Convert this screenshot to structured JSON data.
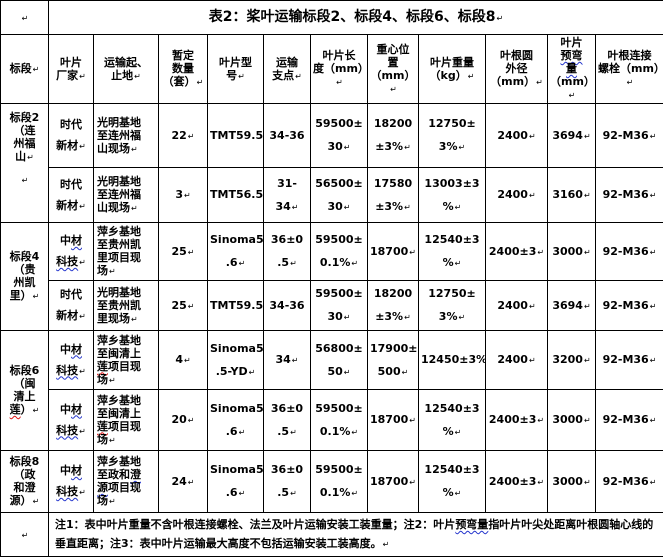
{
  "marks": {
    "pilcrow": "↵"
  },
  "colors": {
    "border": "#000000",
    "text": "#000000",
    "squiggle_blue": "#2233cc",
    "squiggle_red": "#dd1111",
    "background": "#ffffff"
  },
  "title": {
    "text": "表2：桨叶运输标段2、标段4、标段6、标段8"
  },
  "header": {
    "cols": [
      [
        {
          "t": "标段"
        }
      ],
      [
        {
          "t": "叶片\n厂家"
        }
      ],
      [
        {
          "t": "运输起、\n止地"
        }
      ],
      [
        {
          "t": "暂定\n数量\n（套）"
        }
      ],
      [
        {
          "t": "叶片型\n号"
        }
      ],
      [
        {
          "t": "运输\n支点"
        }
      ],
      [
        {
          "t": "叶片长\n度（mm）"
        }
      ],
      [
        {
          "t": "重心位\n置（mm）"
        }
      ],
      [
        {
          "t": "叶片重量\n（kg）"
        }
      ],
      [
        {
          "t": "叶根圆\n外径\n（mm）"
        }
      ],
      [
        {
          "t": "叶片\n"
        },
        {
          "t": "预弯\n量",
          "sq": "blue"
        },
        {
          "t": "\n（mm）"
        }
      ],
      [
        {
          "t": "叶根连接\n螺栓（mm）"
        }
      ]
    ]
  },
  "sections": [
    {
      "label": [
        {
          "t": "标段2\n（连\n州福\n山"
        }
      ]
    },
    {
      "label": [
        {
          "t": "标段4\n（贵\n州凯\n里）"
        }
      ]
    },
    {
      "label": [
        {
          "t": "标段6\n（闽\n清上\n"
        },
        {
          "t": "莲",
          "sq": "red"
        },
        {
          "t": "）"
        }
      ]
    },
    {
      "label": [
        {
          "t": "标段8\n（政\n和澄\n源）"
        }
      ]
    }
  ],
  "rows": [
    {
      "manufacturer": [
        {
          "t": "时代\n新材"
        }
      ],
      "route": [
        {
          "t": "光明基地\n至连州福\n山现场"
        }
      ],
      "qty": "22",
      "model": "TMT59.5",
      "fulcrum": "34-36",
      "length": "59500±\n30",
      "cg": "18200\n±3%",
      "weight": "12750±\n3%",
      "root_od": "2400",
      "prebend": "3694",
      "bolts": "92-M36"
    },
    {
      "manufacturer": [
        {
          "t": "时代\n新材"
        }
      ],
      "route": [
        {
          "t": "光明基地\n至连州福\n山现场"
        }
      ],
      "qty": "3",
      "model": "TMT56.5",
      "fulcrum": "31-34",
      "length": "56500±\n30",
      "cg": "17580\n±3%",
      "weight": "13003±3\n%",
      "root_od": "2400",
      "prebend": "3160",
      "bolts": "92-M36"
    },
    {
      "manufacturer": [
        {
          "t": "中"
        },
        {
          "t": "材",
          "sq": "blue"
        },
        {
          "t": "\n"
        },
        {
          "t": "科技",
          "sq": "blue"
        }
      ],
      "route": [
        {
          "t": "萍乡基地\n至贵州凯\n里项目现\n场"
        }
      ],
      "qty": "25",
      "model": "Sinoma59\n.6",
      "fulcrum": "36±0\n.5",
      "length": "59500±\n0.1%",
      "cg": "18700",
      "weight": "12540±3\n%",
      "root_od": "2400±3",
      "prebend": "3000",
      "bolts": "92-M36"
    },
    {
      "manufacturer": [
        {
          "t": "时代\n新材"
        }
      ],
      "route": [
        {
          "t": "光明基地\n至贵州凯\n里现场"
        }
      ],
      "qty": "25",
      "model": "TMT59.5",
      "fulcrum": "34-36",
      "length": "59500±\n30",
      "cg": "18200\n±3%",
      "weight": "12750±\n3%",
      "root_od": "2400",
      "prebend": "3694",
      "bolts": "92-M36"
    },
    {
      "manufacturer": [
        {
          "t": "中"
        },
        {
          "t": "材",
          "sq": "blue"
        },
        {
          "t": "\n"
        },
        {
          "t": "科技",
          "sq": "blue"
        }
      ],
      "route": [
        {
          "t": "萍乡基地\n至闽清上\n"
        },
        {
          "t": "莲",
          "sq": "red"
        },
        {
          "t": "项目现\n场"
        }
      ],
      "qty": "4",
      "model": "Sinoma56\n.5-YD",
      "fulcrum": "34",
      "length": "56800±\n50",
      "cg": "17900±\n500",
      "weight": "12450±3%",
      "root_od": "2400",
      "prebend": "3200",
      "bolts": "92-M36"
    },
    {
      "manufacturer": [
        {
          "t": "中"
        },
        {
          "t": "材",
          "sq": "blue"
        },
        {
          "t": "\n"
        },
        {
          "t": "科技",
          "sq": "blue"
        }
      ],
      "route": [
        {
          "t": "萍乡基地\n至闽清上\n"
        },
        {
          "t": "莲",
          "sq": "red"
        },
        {
          "t": "项目现\n场"
        }
      ],
      "qty": "20",
      "model": "Sinoma59\n.6",
      "fulcrum": "36±0\n.5",
      "length": "59500±\n0.1%",
      "cg": "18700",
      "weight": "12540±3\n%",
      "root_od": "2400±3",
      "prebend": "3000",
      "bolts": "92-M36"
    },
    {
      "manufacturer": [
        {
          "t": "中"
        },
        {
          "t": "材",
          "sq": "blue"
        },
        {
          "t": "\n"
        },
        {
          "t": "科技",
          "sq": "blue"
        }
      ],
      "route": [
        {
          "t": "萍乡基地\n至政和"
        },
        {
          "t": "澄\n源",
          "sq": "blue"
        },
        {
          "t": "项目现\n场"
        }
      ],
      "qty": "24",
      "model": "Sinoma59\n.6",
      "fulcrum": "36±0\n.5",
      "length": "59500±\n0.1%",
      "cg": "18700",
      "weight": "12540±3\n%",
      "root_od": "2400±3",
      "prebend": "3000",
      "bolts": "92-M36"
    }
  ],
  "note": {
    "parts": [
      {
        "t": "注1：表中叶片重量不含叶根连接螺栓、法兰及叶片运输安装工装重量；注2：叶片"
      },
      {
        "t": "预弯量",
        "sq": "blue"
      },
      {
        "t": "指叶片叶尖处距离叶根圆轴心线的垂直距离；注3：表中叶片运输最大高度不包括运输安装工装高度。"
      }
    ]
  }
}
